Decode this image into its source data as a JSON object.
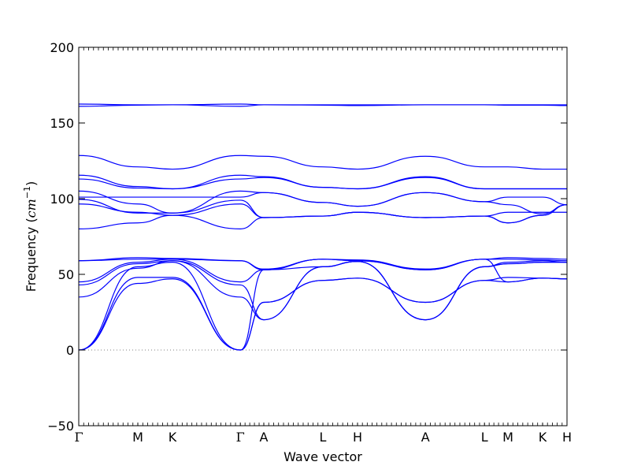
{
  "chart_data": {
    "type": "line",
    "title": "",
    "xlabel": "Wave vector",
    "ylabel_text": "Frequency (",
    "ylabel_unit_base": "cm",
    "ylabel_unit_exp": "−1",
    "ylabel_close": ")",
    "ylim": [
      -50,
      200
    ],
    "yticks": [
      -50,
      0,
      50,
      100,
      150,
      200
    ],
    "xlim": [
      0,
      1
    ],
    "grid": false,
    "legend": "none",
    "zero_line": {
      "y": 0,
      "style": "dotted",
      "color": "#808080"
    },
    "line_color": "#0000ff",
    "points": [
      {
        "name": "Γ",
        "x": 0.0
      },
      {
        "name": "M",
        "x": 0.121
      },
      {
        "name": "K",
        "x": 0.192
      },
      {
        "name": "Γ",
        "x": 0.331
      },
      {
        "name": "A",
        "x": 0.379
      },
      {
        "name": "L",
        "x": 0.5
      },
      {
        "name": "H",
        "x": 0.571
      },
      {
        "name": "A",
        "x": 0.71
      },
      {
        "name": "L",
        "x": 0.831
      },
      {
        "name": "M",
        "x": 0.879
      },
      {
        "name": "K",
        "x": 0.95
      },
      {
        "name": "H",
        "x": 1.0
      }
    ],
    "series": [
      {
        "x": [
          0,
          0.121,
          0.192,
          0.331,
          0.379,
          0.5,
          0.571,
          0.71,
          0.831,
          0.879,
          0.95,
          1.0
        ],
        "values": [
          162.5,
          162.0,
          162.0,
          162.5,
          162.0,
          162.0,
          162.0,
          162.0,
          162.0,
          162.0,
          162.0,
          162.0
        ]
      },
      {
        "x": [
          0,
          0.121,
          0.192,
          0.331,
          0.379,
          0.5,
          0.571,
          0.71,
          0.831,
          0.879,
          0.95,
          1.0
        ],
        "values": [
          161.0,
          161.8,
          162.0,
          161.0,
          162.0,
          161.8,
          161.5,
          162.0,
          162.0,
          161.8,
          161.8,
          161.5
        ]
      },
      {
        "x": [
          0,
          0.121,
          0.192,
          0.331,
          0.379,
          0.5,
          0.571,
          0.71,
          0.831,
          0.879,
          0.95,
          1.0
        ],
        "values": [
          128.5,
          121.0,
          119.5,
          128.5,
          128.0,
          121.0,
          119.5,
          128.0,
          121.0,
          121.0,
          119.5,
          119.5
        ]
      },
      {
        "x": [
          0,
          0.121,
          0.192,
          0.331,
          0.379,
          0.5,
          0.571,
          0.71,
          0.831,
          0.879,
          0.95,
          1.0
        ],
        "values": [
          115.5,
          108.0,
          106.5,
          115.5,
          114.5,
          107.5,
          106.5,
          114.5,
          106.5,
          106.5,
          106.5,
          106.5
        ]
      },
      {
        "x": [
          0,
          0.121,
          0.192,
          0.331,
          0.379,
          0.5,
          0.571,
          0.71,
          0.831,
          0.879,
          0.95,
          1.0
        ],
        "values": [
          113.0,
          107.0,
          106.5,
          113.0,
          114.0,
          107.5,
          106.5,
          114.0,
          106.5,
          106.5,
          106.5,
          106.5
        ]
      },
      {
        "x": [
          0,
          0.121,
          0.192,
          0.331,
          0.379,
          0.5,
          0.571,
          0.71,
          0.831,
          0.879,
          0.95,
          1.0
        ],
        "values": [
          105.0,
          96.5,
          90.5,
          105.0,
          104.0,
          97.5,
          95.0,
          104.0,
          98.0,
          101.0,
          101.0,
          96.0
        ]
      },
      {
        "x": [
          0,
          0.121,
          0.192,
          0.331,
          0.379,
          0.5,
          0.571,
          0.71,
          0.831,
          0.879,
          0.95,
          1.0
        ],
        "values": [
          101.0,
          101.0,
          101.0,
          101.0,
          104.0,
          97.5,
          95.0,
          104.0,
          98.0,
          96.0,
          90.0,
          96.0
        ]
      },
      {
        "x": [
          0,
          0.121,
          0.192,
          0.331,
          0.379,
          0.5,
          0.571,
          0.71,
          0.831,
          0.879,
          0.95,
          1.0
        ],
        "values": [
          99.5,
          90.5,
          90.5,
          99.0,
          87.5,
          88.5,
          91.0,
          87.5,
          88.5,
          91.0,
          91.0,
          91.0
        ]
      },
      {
        "x": [
          0,
          0.121,
          0.192,
          0.331,
          0.379,
          0.5,
          0.571,
          0.71,
          0.831,
          0.879,
          0.95,
          1.0
        ],
        "values": [
          96.5,
          91.0,
          89.0,
          96.5,
          87.5,
          88.5,
          91.0,
          87.5,
          88.5,
          84.0,
          89.0,
          96.0
        ]
      },
      {
        "x": [
          0,
          0.121,
          0.192,
          0.331,
          0.379,
          0.5,
          0.571,
          0.71,
          0.831,
          0.879,
          0.95,
          1.0
        ],
        "values": [
          80.0,
          84.0,
          89.0,
          80.0,
          87.5,
          88.5,
          91.0,
          87.5,
          88.5,
          84.0,
          89.0,
          96.0
        ]
      },
      {
        "x": [
          0,
          0.121,
          0.192,
          0.331,
          0.379,
          0.5,
          0.571,
          0.71,
          0.831,
          0.879,
          0.95,
          1.0
        ],
        "values": [
          59.0,
          61.0,
          60.5,
          59.0,
          53.5,
          60.0,
          59.5,
          53.5,
          60.0,
          61.0,
          60.5,
          60.0
        ]
      },
      {
        "x": [
          0,
          0.121,
          0.192,
          0.331,
          0.379,
          0.5,
          0.571,
          0.71,
          0.831,
          0.879,
          0.95,
          1.0
        ],
        "values": [
          59.0,
          60.0,
          60.0,
          59.0,
          53.0,
          60.0,
          59.0,
          53.0,
          60.0,
          60.0,
          59.5,
          59.0
        ]
      },
      {
        "x": [
          0,
          0.121,
          0.192,
          0.331,
          0.379,
          0.5,
          0.571,
          0.71,
          0.831,
          0.879,
          0.95,
          1.0
        ],
        "values": [
          45.0,
          58.0,
          60.0,
          45.0,
          53.0,
          55.0,
          58.5,
          20.0,
          55.0,
          58.0,
          59.0,
          58.0
        ]
      },
      {
        "x": [
          0,
          0.121,
          0.192,
          0.331,
          0.379,
          0.5,
          0.571,
          0.71,
          0.831,
          0.879,
          0.95,
          1.0
        ],
        "values": [
          43.0,
          57.0,
          59.0,
          43.0,
          20.0,
          55.0,
          58.5,
          20.0,
          55.0,
          57.0,
          58.0,
          58.0
        ]
      },
      {
        "x": [
          0,
          0.121,
          0.192,
          0.331,
          0.379,
          0.5,
          0.571,
          0.71,
          0.831,
          0.879,
          0.95,
          1.0
        ],
        "values": [
          35.0,
          54.0,
          59.0,
          35.0,
          20.0,
          55.0,
          58.5,
          20.0,
          55.0,
          57.0,
          58.0,
          58.0
        ]
      },
      {
        "x": [
          0,
          0.121,
          0.192,
          0.331,
          0.379,
          0.5,
          0.571,
          0.71,
          0.831,
          0.879,
          0.95,
          1.0
        ],
        "values": [
          0,
          48.0,
          48.0,
          0,
          31.5,
          46.0,
          47.5,
          31.5,
          46.0,
          48.0,
          47.5,
          47.0
        ]
      },
      {
        "x": [
          0,
          0.121,
          0.192,
          0.331,
          0.379,
          0.5,
          0.571,
          0.71,
          0.831,
          0.879,
          0.95,
          1.0
        ],
        "values": [
          0,
          55.0,
          58.0,
          0,
          31.5,
          46.0,
          47.5,
          31.5,
          46.0,
          45.0,
          47.5,
          47.0
        ]
      },
      {
        "x": [
          0,
          0.121,
          0.192,
          0.331,
          0.379,
          0.5,
          0.571,
          0.71,
          0.831,
          0.879,
          0.95,
          1.0
        ],
        "values": [
          0,
          44.0,
          47.0,
          0,
          53.0,
          60.0,
          59.0,
          53.0,
          60.0,
          45.0,
          47.5,
          47.0
        ]
      }
    ]
  }
}
